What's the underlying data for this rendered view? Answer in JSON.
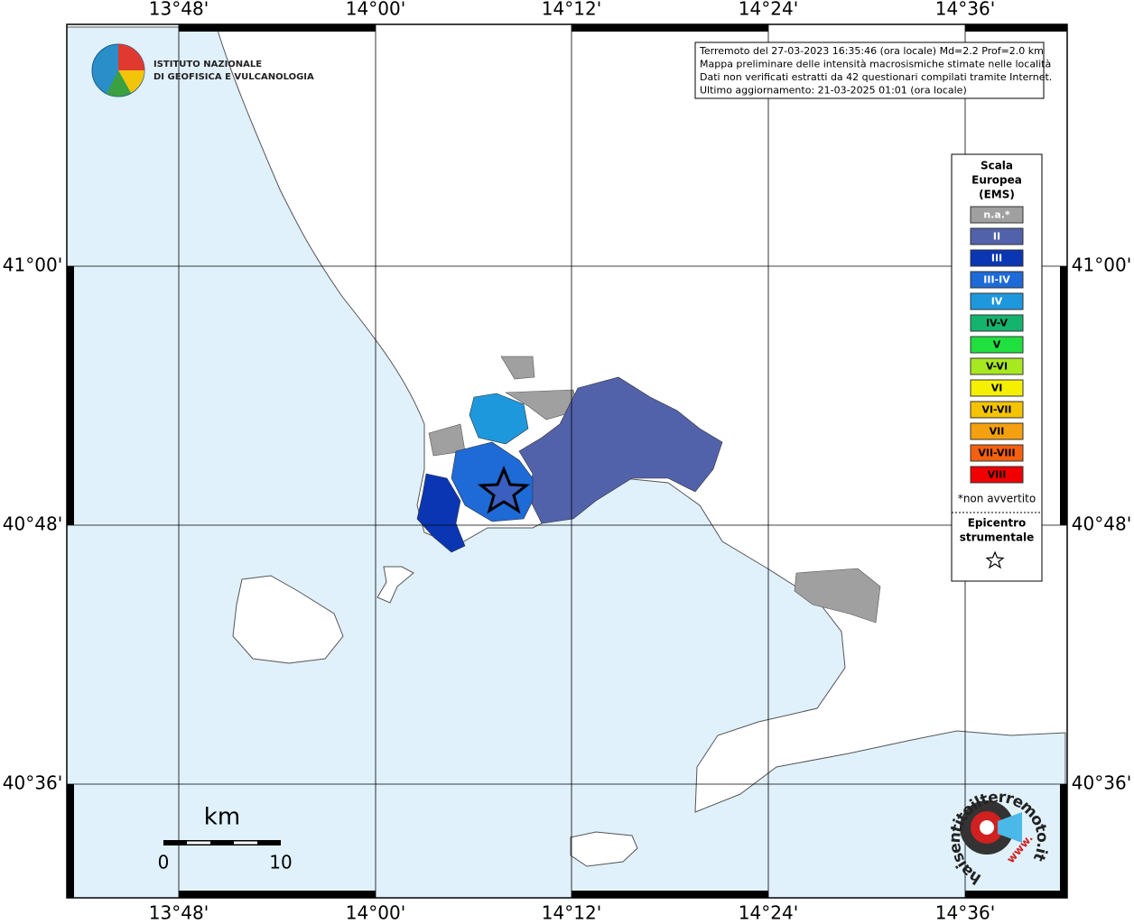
{
  "lon_labels": [
    "13°48'",
    "14°00'",
    "14°12'",
    "14°24'",
    "14°36'"
  ],
  "lat_labels": [
    "41°00'",
    "40°48'",
    "40°36'"
  ],
  "logo": {
    "line1": "ISTITUTO NAZIONALE",
    "line2": "DI GEOFISICA E VULCANOLOGIA"
  },
  "info": [
    "Terremoto del 27-03-2023 16:35:46 (ora locale) Md=2.2 Prof=2.0 km",
    "Mappa preliminare delle intensità macrosismiche stimate nelle località",
    "Dati non verificati estratti da 42 questionari compilati tramite Internet.",
    "Ultimo aggiornamento: 21-03-2025 01:01 (ora locale)"
  ],
  "legend": {
    "title": [
      "Scala",
      "Europea",
      "(EMS)"
    ],
    "items": [
      {
        "label": "n.a.*",
        "color": "#a0a0a0"
      },
      {
        "label": "II",
        "color": "#5262aa"
      },
      {
        "label": "III",
        "color": "#0a36b4"
      },
      {
        "label": "III-IV",
        "color": "#1e6ad6"
      },
      {
        "label": "IV",
        "color": "#1e98dc"
      },
      {
        "label": "IV-V",
        "color": "#14b46e"
      },
      {
        "label": "V",
        "color": "#20e040"
      },
      {
        "label": "V-VI",
        "color": "#a8e820"
      },
      {
        "label": "VI",
        "color": "#f4f000"
      },
      {
        "label": "VI-VII",
        "color": "#f4c400"
      },
      {
        "label": "VII",
        "color": "#f4a010"
      },
      {
        "label": "VII-VIII",
        "color": "#f46010"
      },
      {
        "label": "VIII",
        "color": "#f00000"
      }
    ],
    "note": "*non avvertito",
    "epicenter": [
      "Epicentro",
      "strumentale"
    ]
  },
  "scale": {
    "unit": "km",
    "start": "0",
    "end": "10"
  },
  "badge": {
    "text": "haisentitoilterremoto.it",
    "www": "www."
  }
}
